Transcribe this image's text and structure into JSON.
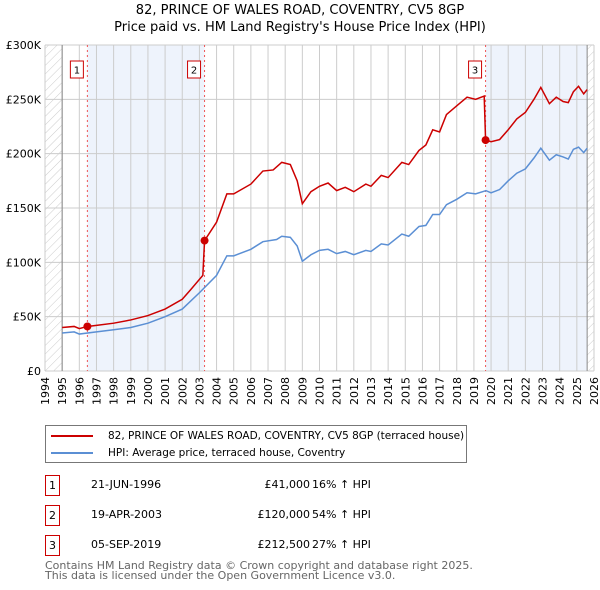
{
  "chart_data": {
    "type": "line",
    "title": "82, PRINCE OF WALES ROAD, COVENTRY, CV5 8GP",
    "subtitle": "Price paid vs. HM Land Registry's House Price Index (HPI)",
    "xlim": [
      1994,
      2026
    ],
    "ylim": [
      0,
      300000
    ],
    "y_ticks": [
      {
        "v": 0,
        "label": "£0"
      },
      {
        "v": 50000,
        "label": "£50K"
      },
      {
        "v": 100000,
        "label": "£100K"
      },
      {
        "v": 150000,
        "label": "£150K"
      },
      {
        "v": 200000,
        "label": "£200K"
      },
      {
        "v": 250000,
        "label": "£250K"
      },
      {
        "v": 300000,
        "label": "£300K"
      }
    ],
    "x_ticks": [
      "1994",
      "1995",
      "1996",
      "1997",
      "1998",
      "1999",
      "2000",
      "2001",
      "2002",
      "2003",
      "2004",
      "2005",
      "2006",
      "2007",
      "2008",
      "2009",
      "2010",
      "2011",
      "2012",
      "2013",
      "2014",
      "2015",
      "2016",
      "2017",
      "2018",
      "2019",
      "2020",
      "2021",
      "2022",
      "2023",
      "2024",
      "2025",
      "2026"
    ],
    "grid": true,
    "data_range": [
      1995,
      2025.6
    ],
    "shaded_periods": [
      [
        1996.47,
        2003.3
      ],
      [
        2019.68,
        2025.6
      ]
    ],
    "series": [
      {
        "name": "82, PRINCE OF WALES ROAD, COVENTRY, CV5 8GP (terraced house)",
        "color": "#cc0000",
        "x": [
          1995,
          1995.7,
          1996,
          1996.47,
          1997,
          1998,
          1999,
          2000,
          2001,
          2002,
          2002.5,
          2003.2,
          2003.3,
          2004,
          2004.6,
          2005,
          2006,
          2006.7,
          2007.3,
          2007.8,
          2008.3,
          2008.7,
          2009,
          2009.5,
          2010,
          2010.5,
          2011,
          2011.5,
          2012,
          2012.7,
          2013,
          2013.6,
          2014,
          2014.8,
          2015.2,
          2015.8,
          2016.2,
          2016.6,
          2017,
          2017.4,
          2018,
          2018.6,
          2019.1,
          2019.6,
          2019.68,
          2020,
          2020.5,
          2021,
          2021.5,
          2022,
          2022.5,
          2022.9,
          2023.4,
          2023.8,
          2024.2,
          2024.5,
          2024.8,
          2025.1,
          2025.4,
          2025.6
        ],
        "y": [
          40000,
          41000,
          39000,
          41000,
          42000,
          44000,
          47000,
          51000,
          57000,
          66000,
          75000,
          88000,
          120000,
          137000,
          163000,
          163000,
          172000,
          184000,
          185000,
          192000,
          190000,
          175000,
          154000,
          165000,
          170000,
          173000,
          166000,
          169000,
          165000,
          172000,
          170000,
          180000,
          178000,
          192000,
          190000,
          203000,
          208000,
          222000,
          220000,
          236000,
          244000,
          252000,
          250000,
          253000,
          212500,
          211000,
          213000,
          222000,
          232000,
          238000,
          250000,
          261000,
          246000,
          252000,
          248000,
          247000,
          257000,
          262000,
          255000,
          259000
        ]
      },
      {
        "name": "HPI: Average price, terraced house, Coventry",
        "color": "#5b8fd4",
        "x": [
          1995,
          1995.7,
          1996,
          1997,
          1998,
          1999,
          2000,
          2001,
          2002,
          2003,
          2004,
          2004.6,
          2005,
          2006,
          2006.7,
          2007.5,
          2007.8,
          2008.3,
          2008.7,
          2009,
          2009.5,
          2010,
          2010.5,
          2011,
          2011.5,
          2012,
          2012.7,
          2013,
          2013.6,
          2014,
          2014.8,
          2015.2,
          2015.8,
          2016.2,
          2016.6,
          2017,
          2017.4,
          2018,
          2018.6,
          2019.1,
          2019.7,
          2020,
          2020.5,
          2021,
          2021.5,
          2022,
          2022.5,
          2022.9,
          2023.4,
          2023.8,
          2024.2,
          2024.5,
          2024.8,
          2025.1,
          2025.4,
          2025.6
        ],
        "y": [
          35000,
          36000,
          34000,
          36000,
          38000,
          40000,
          44000,
          50000,
          57000,
          72000,
          88000,
          106000,
          106000,
          112000,
          119000,
          121000,
          124000,
          123000,
          115000,
          101000,
          107000,
          111000,
          112000,
          108000,
          110000,
          107000,
          111000,
          110000,
          117000,
          116000,
          126000,
          124000,
          133000,
          134000,
          144000,
          144000,
          153000,
          158000,
          164000,
          163000,
          166000,
          164000,
          167000,
          175000,
          182000,
          186000,
          196000,
          205000,
          194000,
          199000,
          197000,
          195000,
          204000,
          206000,
          201000,
          205000
        ]
      }
    ],
    "sales": [
      {
        "n": "1",
        "x": 1996.47,
        "y": 41000,
        "date": "21-JUN-1996",
        "price": "£41,000",
        "hpi": "16% ↑ HPI"
      },
      {
        "n": "2",
        "x": 2003.3,
        "y": 120000,
        "date": "19-APR-2003",
        "price": "£120,000",
        "hpi": "54% ↑ HPI"
      },
      {
        "n": "3",
        "x": 2019.68,
        "y": 212500,
        "date": "05-SEP-2019",
        "price": "£212,500",
        "hpi": "27% ↑ HPI"
      }
    ]
  },
  "footer": {
    "line1": "Contains HM Land Registry data © Crown copyright and database right 2025.",
    "line2": "This data is licensed under the Open Government Licence v3.0."
  }
}
